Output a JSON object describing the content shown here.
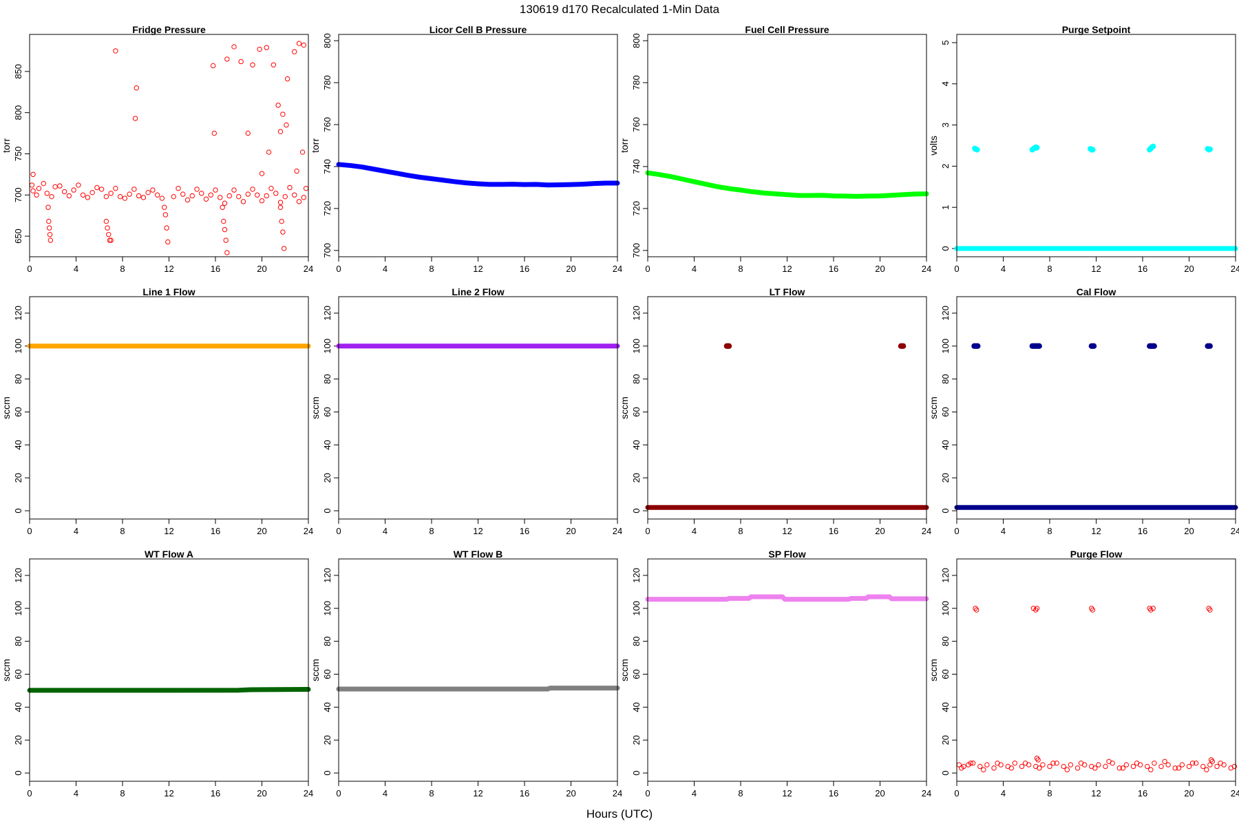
{
  "figure": {
    "title": "130619   d170   Recalculated 1-Min Data",
    "xlabel": "Hours (UTC)"
  },
  "chart_data": [
    {
      "type": "scatter",
      "title": "Fridge Pressure",
      "ylabel": "torr",
      "color": "#ff0000",
      "marker": "open-circle",
      "xlim": [
        0,
        24
      ],
      "ylim": [
        625,
        895
      ],
      "xticks": [
        0,
        4,
        8,
        12,
        16,
        20,
        24
      ],
      "yticks": [
        650,
        700,
        750,
        800,
        850
      ],
      "series": [
        {
          "x": [
            0.3,
            0.8,
            1.5,
            2.2,
            3.0,
            3.8,
            4.6,
            5.4,
            6.2,
            7.0,
            7.8,
            8.6,
            9.4,
            10.2,
            11.0,
            12.4,
            13.2,
            14.0,
            14.8,
            15.6,
            16.4,
            17.2,
            18.0,
            18.8,
            19.6,
            20.4,
            21.2,
            22.0,
            22.8,
            23.6,
            0.2,
            0.6,
            1.2,
            1.9,
            2.6,
            3.4,
            4.2,
            5.0,
            5.8,
            6.6,
            7.4,
            8.2,
            9.0,
            9.8,
            10.6,
            11.4,
            12.8,
            13.6,
            14.4,
            15.2,
            16.0,
            16.8,
            17.6,
            18.4,
            19.2,
            20.0,
            20.8,
            21.6,
            22.4,
            23.2,
            23.8,
            1.6,
            1.65,
            1.7,
            1.75,
            1.8,
            6.6,
            6.7,
            6.8,
            6.9,
            7.0,
            11.6,
            11.7,
            11.8,
            11.9,
            16.6,
            16.7,
            16.8,
            16.9,
            17.0,
            21.6,
            21.7,
            21.8,
            21.9,
            7.4,
            9.2,
            9.1,
            15.8,
            15.9,
            17.0,
            17.6,
            18.2,
            18.8,
            19.2,
            19.8,
            20.4,
            21.0,
            21.6,
            22.2,
            22.8,
            23.2,
            23.6,
            20.0,
            20.6,
            21.4,
            21.8,
            22.1,
            23.0,
            23.5,
            0.3
          ],
          "y": [
            705,
            708,
            702,
            710,
            704,
            706,
            700,
            703,
            707,
            702,
            698,
            701,
            699,
            703,
            700,
            698,
            701,
            699,
            702,
            700,
            697,
            699,
            698,
            701,
            700,
            699,
            702,
            698,
            700,
            697,
            712,
            700,
            714,
            698,
            711,
            699,
            712,
            697,
            709,
            698,
            708,
            696,
            707,
            697,
            706,
            696,
            708,
            694,
            707,
            695,
            706,
            690,
            706,
            692,
            707,
            693,
            708,
            691,
            709,
            692,
            708,
            685,
            668,
            660,
            652,
            645,
            668,
            660,
            652,
            645,
            645,
            685,
            676,
            660,
            643,
            685,
            668,
            658,
            645,
            630,
            685,
            668,
            655,
            635,
            875,
            830,
            793,
            857,
            775,
            865,
            880,
            862,
            775,
            858,
            877,
            879,
            858,
            777,
            841,
            874,
            884,
            882,
            726,
            752,
            809,
            798,
            785,
            729,
            752,
            725
          ]
        }
      ]
    },
    {
      "type": "scatter",
      "title": "Licor Cell B Pressure",
      "ylabel": "torr",
      "color": "#0000ff",
      "marker": "filled-line",
      "xlim": [
        0,
        24
      ],
      "ylim": [
        697,
        803
      ],
      "xticks": [
        0,
        4,
        8,
        12,
        16,
        20,
        24
      ],
      "yticks": [
        700,
        720,
        740,
        760,
        780,
        800
      ],
      "series": [
        {
          "x": [
            0,
            1,
            2,
            3,
            4,
            5,
            6,
            7,
            8,
            9,
            10,
            11,
            12,
            13,
            14,
            15,
            16,
            17,
            18,
            19,
            20,
            21,
            22,
            23,
            24
          ],
          "y": [
            741,
            740.5,
            739.8,
            738.8,
            737.8,
            736.8,
            735.8,
            734.9,
            734.2,
            733.5,
            732.8,
            732.2,
            731.8,
            731.5,
            731.5,
            731.6,
            731.4,
            731.5,
            731.2,
            731.3,
            731.4,
            731.6,
            731.9,
            732.1,
            732.1
          ]
        }
      ]
    },
    {
      "type": "scatter",
      "title": "Fuel Cell Pressure",
      "ylabel": "torr",
      "color": "#00ff00",
      "marker": "filled-line",
      "xlim": [
        0,
        24
      ],
      "ylim": [
        697,
        803
      ],
      "xticks": [
        0,
        4,
        8,
        12,
        16,
        20,
        24
      ],
      "yticks": [
        700,
        720,
        740,
        760,
        780,
        800
      ],
      "series": [
        {
          "x": [
            0,
            1,
            2,
            3,
            4,
            5,
            6,
            7,
            8,
            9,
            10,
            11,
            12,
            13,
            14,
            15,
            16,
            17,
            18,
            19,
            20,
            21,
            22,
            23,
            24
          ],
          "y": [
            737,
            736.2,
            735.2,
            734,
            732.8,
            731.6,
            730.4,
            729.5,
            728.8,
            728,
            727.4,
            727,
            726.6,
            726.2,
            726.2,
            726.3,
            726.0,
            725.9,
            725.8,
            725.9,
            726.0,
            726.3,
            726.6,
            726.9,
            727.0
          ]
        }
      ]
    },
    {
      "type": "scatter",
      "title": "Purge Setpoint",
      "ylabel": "volts",
      "color": "#00ffff",
      "marker": "filled-line",
      "xlim": [
        0,
        24
      ],
      "ylim": [
        -0.2,
        5.2
      ],
      "xticks": [
        0,
        4,
        8,
        12,
        16,
        20,
        24
      ],
      "yticks": [
        0,
        1,
        2,
        3,
        4,
        5
      ],
      "series": [
        {
          "x": [
            0,
            24
          ],
          "y": [
            0,
            0
          ]
        },
        {
          "x": [
            1.55,
            1.65,
            1.75,
            6.5,
            6.6,
            6.7,
            6.8,
            6.9,
            11.5,
            11.6,
            11.7,
            16.6,
            16.7,
            16.8,
            16.9,
            21.6,
            21.7,
            21.8
          ],
          "y": [
            2.43,
            2.41,
            2.4,
            2.4,
            2.42,
            2.44,
            2.46,
            2.45,
            2.42,
            2.4,
            2.4,
            2.4,
            2.43,
            2.46,
            2.48,
            2.42,
            2.4,
            2.41
          ]
        }
      ]
    },
    {
      "type": "scatter",
      "title": "Line 1 Flow",
      "ylabel": "sccm",
      "color": "#ffa500",
      "marker": "filled-line",
      "xlim": [
        0,
        24
      ],
      "ylim": [
        -5,
        130
      ],
      "xticks": [
        0,
        4,
        8,
        12,
        16,
        20,
        24
      ],
      "yticks": [
        0,
        20,
        40,
        60,
        80,
        100,
        120
      ],
      "series": [
        {
          "x": [
            0,
            24
          ],
          "y": [
            100,
            100
          ]
        }
      ]
    },
    {
      "type": "scatter",
      "title": "Line 2 Flow",
      "ylabel": "sccm",
      "color": "#a020f0",
      "marker": "filled-line",
      "xlim": [
        0,
        24
      ],
      "ylim": [
        -5,
        130
      ],
      "xticks": [
        0,
        4,
        8,
        12,
        16,
        20,
        24
      ],
      "yticks": [
        0,
        20,
        40,
        60,
        80,
        100,
        120
      ],
      "series": [
        {
          "x": [
            0,
            24
          ],
          "y": [
            100,
            100
          ]
        }
      ]
    },
    {
      "type": "scatter",
      "title": "LT Flow",
      "ylabel": "sccm",
      "color": "#8b0000",
      "marker": "filled-line",
      "xlim": [
        0,
        24
      ],
      "ylim": [
        -5,
        130
      ],
      "xticks": [
        0,
        4,
        8,
        12,
        16,
        20,
        24
      ],
      "yticks": [
        0,
        20,
        40,
        60,
        80,
        100,
        120
      ],
      "series": [
        {
          "x": [
            0,
            24
          ],
          "y": [
            2,
            2
          ]
        },
        {
          "x": [
            6.8,
            6.9,
            7.0,
            21.8,
            21.9,
            22.0
          ],
          "y": [
            100,
            100,
            100,
            100,
            100,
            100
          ]
        }
      ]
    },
    {
      "type": "scatter",
      "title": "Cal Flow",
      "ylabel": "sccm",
      "color": "#00008b",
      "marker": "filled-line",
      "xlim": [
        0,
        24
      ],
      "ylim": [
        -5,
        130
      ],
      "xticks": [
        0,
        4,
        8,
        12,
        16,
        20,
        24
      ],
      "yticks": [
        0,
        20,
        40,
        60,
        80,
        100,
        120
      ],
      "series": [
        {
          "x": [
            0,
            24
          ],
          "y": [
            2,
            2
          ]
        },
        {
          "x": [
            1.5,
            1.6,
            1.7,
            1.8,
            6.5,
            6.6,
            6.7,
            6.8,
            6.9,
            7.0,
            7.1,
            11.6,
            11.7,
            11.8,
            16.6,
            16.7,
            16.8,
            16.9,
            17.0,
            21.6,
            21.7,
            21.8
          ],
          "y": [
            100,
            100,
            100,
            100,
            100,
            100,
            100,
            100,
            100,
            100,
            100,
            100,
            100,
            100,
            100,
            100,
            100,
            100,
            100,
            100,
            100,
            100
          ]
        }
      ]
    },
    {
      "type": "scatter",
      "title": "WT Flow A",
      "ylabel": "sccm",
      "color": "#006400",
      "marker": "filled-line",
      "xlim": [
        0,
        24
      ],
      "ylim": [
        -5,
        130
      ],
      "xticks": [
        0,
        4,
        8,
        12,
        16,
        20,
        24
      ],
      "yticks": [
        0,
        20,
        40,
        60,
        80,
        100,
        120
      ],
      "series": [
        {
          "x": [
            0,
            6,
            12,
            18,
            19,
            24
          ],
          "y": [
            50.2,
            50.2,
            50.2,
            50.3,
            50.6,
            50.8
          ]
        }
      ]
    },
    {
      "type": "scatter",
      "title": "WT Flow B",
      "ylabel": "sccm",
      "color": "#808080",
      "marker": "filled-line",
      "xlim": [
        0,
        24
      ],
      "ylim": [
        -5,
        130
      ],
      "xticks": [
        0,
        4,
        8,
        12,
        16,
        20,
        24
      ],
      "yticks": [
        0,
        20,
        40,
        60,
        80,
        100,
        120
      ],
      "series": [
        {
          "x": [
            0,
            18,
            18.2,
            24
          ],
          "y": [
            51.0,
            51.0,
            51.6,
            51.6
          ]
        }
      ]
    },
    {
      "type": "scatter",
      "title": "SP Flow",
      "ylabel": "sccm",
      "color": "#ee82ee",
      "marker": "filled-line",
      "xlim": [
        0,
        24
      ],
      "ylim": [
        -5,
        130
      ],
      "xticks": [
        0,
        4,
        8,
        12,
        16,
        20,
        24
      ],
      "yticks": [
        0,
        20,
        40,
        60,
        80,
        100,
        120
      ],
      "series": [
        {
          "x": [
            0,
            6.8,
            7.0,
            8.7,
            8.9,
            11.6,
            11.8,
            17.3,
            17.5,
            18.8,
            19.0,
            20.8,
            21.0,
            24
          ],
          "y": [
            105.5,
            105.5,
            106,
            106,
            107,
            107,
            105.5,
            105.5,
            106,
            106,
            107,
            107,
            105.8,
            105.8
          ]
        }
      ]
    },
    {
      "type": "scatter",
      "title": "Purge Flow",
      "ylabel": "sccm",
      "color": "#ff0000",
      "marker": "open-circle",
      "xlim": [
        0,
        24
      ],
      "ylim": [
        -5,
        130
      ],
      "xticks": [
        0,
        4,
        8,
        12,
        16,
        20,
        24
      ],
      "yticks": [
        0,
        20,
        40,
        60,
        80,
        100,
        120
      ],
      "series": [
        {
          "x": [
            0.2,
            0.6,
            1.0,
            1.4,
            2.0,
            2.6,
            3.2,
            3.8,
            4.4,
            5.0,
            5.6,
            6.2,
            6.8,
            7.4,
            8.0,
            8.6,
            9.2,
            9.8,
            10.4,
            11.0,
            11.6,
            12.2,
            12.8,
            13.4,
            14.0,
            14.6,
            15.2,
            15.8,
            16.4,
            17.0,
            17.6,
            18.2,
            18.8,
            19.4,
            20.0,
            20.6,
            21.2,
            21.8,
            22.4,
            23.0,
            23.6,
            0.4,
            1.2,
            2.3,
            3.5,
            4.7,
            5.9,
            7.1,
            8.3,
            9.5,
            10.7,
            11.9,
            13.1,
            14.3,
            15.5,
            16.7,
            17.9,
            19.1,
            20.3,
            21.5,
            22.7,
            23.9,
            6.9,
            7.0,
            21.9,
            22.0,
            1.6,
            1.7,
            6.6,
            6.8,
            6.9,
            11.6,
            11.7,
            16.6,
            16.7,
            16.9,
            21.7,
            21.8
          ],
          "y": [
            5,
            4,
            5,
            6,
            4,
            5,
            3,
            5,
            4,
            6,
            4,
            5,
            4,
            5,
            4,
            6,
            4,
            5,
            3,
            5,
            4,
            5,
            4,
            6,
            3,
            5,
            4,
            5,
            4,
            6,
            4,
            5,
            3,
            5,
            4,
            6,
            4,
            5,
            4,
            5,
            3,
            3,
            6,
            2,
            6,
            3,
            6,
            3,
            6,
            2,
            6,
            3,
            7,
            3,
            6,
            2,
            7,
            3,
            6,
            2,
            6,
            4,
            9,
            8,
            8,
            7,
            100,
            99,
            100,
            99,
            100,
            100,
            99,
            100,
            99,
            100,
            100,
            99
          ]
        }
      ]
    }
  ]
}
